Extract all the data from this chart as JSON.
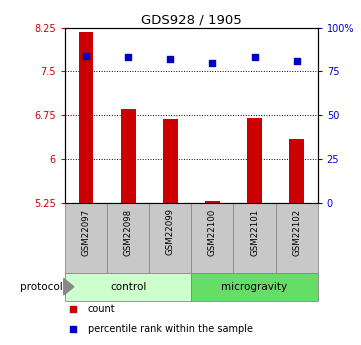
{
  "title": "GDS928 / 1905",
  "samples": [
    "GSM22097",
    "GSM22098",
    "GSM22099",
    "GSM22100",
    "GSM22101",
    "GSM22102"
  ],
  "bar_values": [
    8.18,
    6.85,
    6.68,
    5.28,
    6.7,
    6.35
  ],
  "percentile_values": [
    84,
    83,
    82,
    80,
    83,
    81
  ],
  "ylim_left": [
    5.25,
    8.25
  ],
  "ylim_right": [
    0,
    100
  ],
  "yticks_left": [
    5.25,
    6.0,
    6.75,
    7.5,
    8.25
  ],
  "ytick_labels_left": [
    "5.25",
    "6",
    "6.75",
    "7.5",
    "8.25"
  ],
  "yticks_right": [
    0,
    25,
    50,
    75,
    100
  ],
  "ytick_labels_right": [
    "0",
    "25",
    "50",
    "75",
    "100%"
  ],
  "bar_color": "#cc0000",
  "percentile_color": "#0000cc",
  "bar_bottom": 5.25,
  "groups": [
    {
      "label": "control",
      "indices": [
        0,
        1,
        2
      ],
      "color": "#ccffcc"
    },
    {
      "label": "microgravity",
      "indices": [
        3,
        4,
        5
      ],
      "color": "#66dd66"
    }
  ],
  "protocol_label": "protocol",
  "legend_items": [
    {
      "label": "count",
      "color": "#cc0000"
    },
    {
      "label": "percentile rank within the sample",
      "color": "#0000cc"
    }
  ],
  "background_color": "#ffffff",
  "tick_color_left": "#cc0000",
  "tick_color_right": "#0000cc",
  "label_box_color": "#c8c8c8",
  "bar_width": 0.35
}
